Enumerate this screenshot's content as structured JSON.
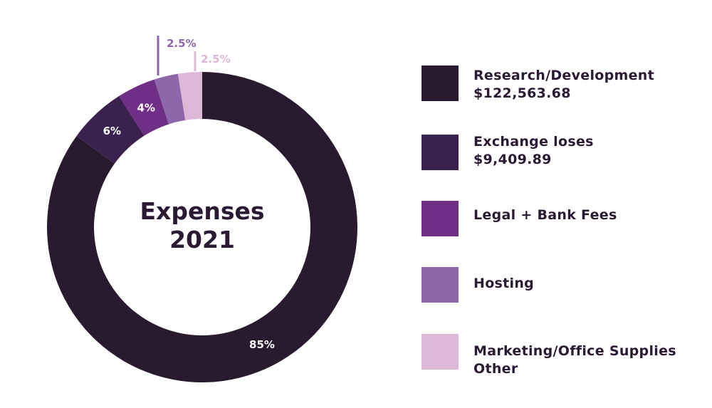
{
  "chart_data": {
    "type": "pie",
    "title": "Expenses 2021",
    "title_lines": [
      "Expenses",
      "2021"
    ],
    "slices": [
      {
        "label": "Research/Development",
        "amount": "$122,563.68",
        "value": 85,
        "value_label": "85%",
        "color": "#291a30"
      },
      {
        "label": "Exchange loses",
        "amount": "$9,409.89",
        "value": 6,
        "value_label": "6%",
        "color": "#3a2150"
      },
      {
        "label": "Legal + Bank Fees",
        "amount": "",
        "value": 4,
        "value_label": "4%",
        "color": "#6f2f86"
      },
      {
        "label": "Hosting",
        "amount": "",
        "value": 2.5,
        "value_label": "2.5%",
        "color": "#8e67aa"
      },
      {
        "label": "Marketing/Office Supplies Other",
        "amount": "",
        "value": 2.5,
        "value_label": "2.5%",
        "color": "#dbb8d8"
      }
    ],
    "legend_placement": "right",
    "donut": true
  },
  "legend": [
    {
      "line1": "Research/Development",
      "line2": "$122,563.68"
    },
    {
      "line1": "Exchange loses",
      "line2": "$9,409.89"
    },
    {
      "line1": "Legal + Bank Fees",
      "line2": ""
    },
    {
      "line1": "Hosting",
      "line2": ""
    },
    {
      "line1": "Marketing/Office Supplies",
      "line2": "Other"
    }
  ]
}
